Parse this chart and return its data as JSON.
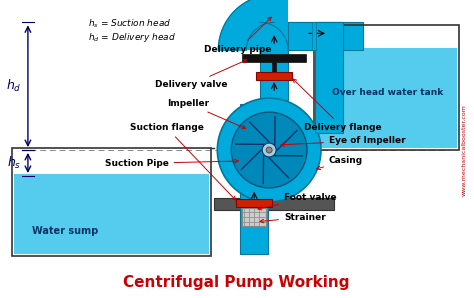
{
  "title": "Centrifugal Pump Working",
  "title_color": "#cc0000",
  "title_fontsize": 11,
  "bg_color": "#ffffff",
  "pipe_color": "#00aadd",
  "pipe_edge_color": "#007799",
  "water_color": "#55ccee",
  "arrow_color": "#cc0000",
  "label_color": "#000000",
  "dim_line_color": "#000066",
  "website_color": "#cc0000",
  "labels": {
    "delivery_pipe": "Delivery pipe",
    "delivery_valve": "Delivery valve",
    "impeller": "Impeller",
    "suction_flange": "Suction flange",
    "delivery_flange": "Delivery flange",
    "suction_pipe": "Suction Pipe",
    "foot_valve": "Foot valve",
    "strainer": "Strainer",
    "eye_impeller": "Eye of Impeller",
    "casing": "Casing",
    "water_sump": "Water sump",
    "overhead_tank": "Over head water tank",
    "hs_label": "$h_s$",
    "hd_label": "$h_d$",
    "legend1": "$h_s$ = Suction head",
    "legend2": "$h_d$ = Delivery head",
    "website": "www.mechanicalbooster.com"
  }
}
